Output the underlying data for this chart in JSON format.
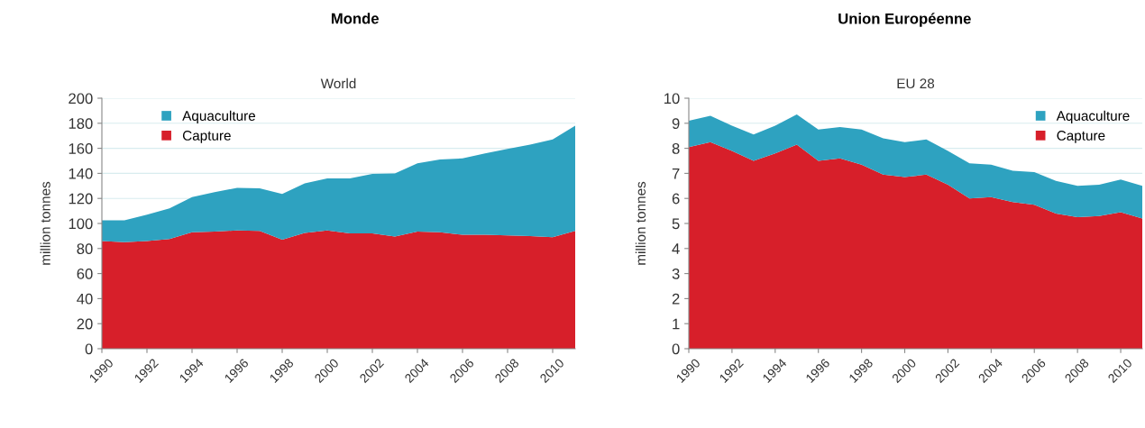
{
  "chart_data": [
    {
      "type": "area",
      "title": "Monde",
      "subtitle": "World",
      "ylabel": "million tonnes",
      "stacked": true,
      "x": [
        1990,
        1991,
        1992,
        1993,
        1994,
        1995,
        1996,
        1997,
        1998,
        1999,
        2000,
        2001,
        2002,
        2003,
        2004,
        2005,
        2006,
        2007,
        2008,
        2009,
        2010,
        2011
      ],
      "series": [
        {
          "name": "Capture",
          "color": "#d71f2a",
          "values": [
            86,
            85,
            86,
            87.5,
            93,
            93.5,
            94.5,
            94,
            87,
            92.5,
            94.5,
            92,
            92,
            89.5,
            93.5,
            93,
            91,
            91,
            90.5,
            90,
            89,
            94
          ]
        },
        {
          "name": "Aquaculture",
          "color": "#2ea2c0",
          "values": [
            16.5,
            17.5,
            21,
            24.5,
            28,
            31.5,
            34,
            34,
            36.5,
            39.5,
            41.5,
            44,
            47.5,
            50.5,
            54.5,
            58,
            61,
            65,
            69,
            73,
            78,
            84
          ]
        }
      ],
      "xlim": [
        1990,
        2011
      ],
      "xticks": [
        1990,
        1992,
        1994,
        1996,
        1998,
        2000,
        2002,
        2004,
        2006,
        2008,
        2010
      ],
      "ylim": [
        0,
        200
      ],
      "yticks": [
        0,
        20,
        40,
        60,
        80,
        100,
        120,
        140,
        160,
        180,
        200
      ],
      "grid": "y",
      "legend": "top left"
    },
    {
      "type": "area",
      "title": "Union Européenne",
      "subtitle": "EU 28",
      "ylabel": "million tonnes",
      "stacked": true,
      "x": [
        1990,
        1991,
        1992,
        1993,
        1994,
        1995,
        1996,
        1997,
        1998,
        1999,
        2000,
        2001,
        2002,
        2003,
        2004,
        2005,
        2006,
        2007,
        2008,
        2009,
        2010,
        2011
      ],
      "series": [
        {
          "name": "Capture",
          "color": "#d71f2a",
          "values": [
            8.05,
            8.25,
            7.9,
            7.5,
            7.8,
            8.15,
            7.5,
            7.6,
            7.35,
            6.95,
            6.85,
            6.95,
            6.55,
            6.0,
            6.05,
            5.85,
            5.75,
            5.4,
            5.25,
            5.3,
            5.45,
            5.2
          ]
        },
        {
          "name": "Aquaculture",
          "color": "#2ea2c0",
          "values": [
            1.05,
            1.05,
            1.0,
            1.05,
            1.1,
            1.2,
            1.25,
            1.25,
            1.4,
            1.45,
            1.4,
            1.4,
            1.35,
            1.4,
            1.3,
            1.25,
            1.3,
            1.3,
            1.25,
            1.25,
            1.3,
            1.3
          ]
        }
      ],
      "xlim": [
        1990,
        2011
      ],
      "xticks": [
        1990,
        1992,
        1994,
        1996,
        1998,
        2000,
        2002,
        2004,
        2006,
        2008,
        2010
      ],
      "ylim": [
        0,
        10
      ],
      "yticks": [
        0,
        1,
        2,
        3,
        4,
        5,
        6,
        7,
        8,
        9,
        10
      ],
      "grid": "y",
      "legend": "top right"
    }
  ]
}
